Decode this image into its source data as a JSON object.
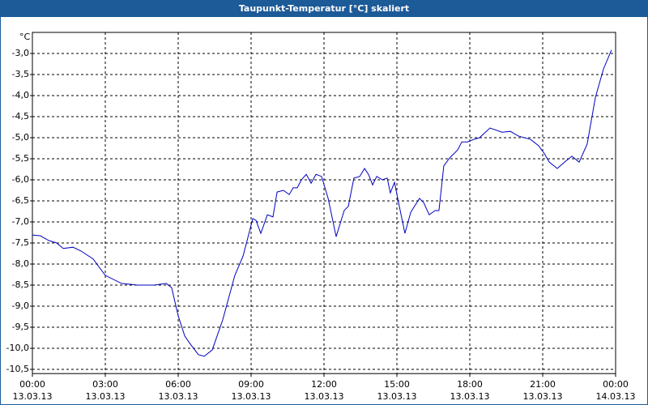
{
  "chart_data": {
    "type": "line",
    "title": "Taupunkt-Temperatur [°C] skaliert",
    "y_unit": "°C",
    "color": "#0000c0",
    "grid": true,
    "xlim": [
      0,
      24
    ],
    "ylim": [
      -10.6,
      -2.5
    ],
    "xticks": [
      {
        "value": 0,
        "label": "00:00"
      },
      {
        "value": 3,
        "label": "03:00"
      },
      {
        "value": 6,
        "label": "06:00"
      },
      {
        "value": 9,
        "label": "09:00"
      },
      {
        "value": 12,
        "label": "12:00"
      },
      {
        "value": 15,
        "label": "15:00"
      },
      {
        "value": 18,
        "label": "18:00"
      },
      {
        "value": 21,
        "label": "21:00"
      },
      {
        "value": 24,
        "label": "00:00"
      }
    ],
    "xtick_dates": [
      "13.03.13",
      "13.03.13",
      "13.03.13",
      "13.03.13",
      "13.03.13",
      "13.03.13",
      "13.03.13",
      "13.03.13",
      "14.03.13"
    ],
    "yticks": [
      {
        "value": -3.0,
        "label": "-3,0"
      },
      {
        "value": -3.5,
        "label": "-3,5"
      },
      {
        "value": -4.0,
        "label": "-4,0"
      },
      {
        "value": -4.5,
        "label": "-4,5"
      },
      {
        "value": -5.0,
        "label": "-5,0"
      },
      {
        "value": -5.5,
        "label": "-5,5"
      },
      {
        "value": -6.0,
        "label": "-6,0"
      },
      {
        "value": -6.5,
        "label": "-6,5"
      },
      {
        "value": -7.0,
        "label": "-7,0"
      },
      {
        "value": -7.5,
        "label": "-7,5"
      },
      {
        "value": -8.0,
        "label": "-8,0"
      },
      {
        "value": -8.5,
        "label": "-8,5"
      },
      {
        "value": -9.0,
        "label": "-9,0"
      },
      {
        "value": -9.5,
        "label": "-9,5"
      },
      {
        "value": -10.0,
        "label": "-10,0"
      },
      {
        "value": -10.5,
        "label": "-10,5"
      }
    ],
    "x": [
      0,
      0.33,
      0.67,
      1.0,
      1.27,
      1.67,
      2.0,
      2.5,
      3.0,
      3.67,
      4.33,
      5.0,
      5.5,
      5.73,
      6.0,
      6.27,
      6.5,
      6.83,
      7.07,
      7.4,
      7.83,
      8.33,
      8.67,
      9.07,
      9.2,
      9.4,
      9.67,
      9.9,
      10.07,
      10.33,
      10.57,
      10.73,
      10.9,
      11.07,
      11.27,
      11.47,
      11.67,
      11.9,
      12.17,
      12.5,
      12.83,
      13.0,
      13.23,
      13.47,
      13.67,
      13.83,
      14.0,
      14.17,
      14.4,
      14.6,
      14.73,
      14.9,
      15.1,
      15.33,
      15.57,
      15.93,
      16.1,
      16.33,
      16.57,
      16.73,
      16.93,
      17.17,
      17.5,
      17.67,
      17.9,
      18.17,
      18.4,
      18.83,
      19.33,
      19.67,
      20.0,
      20.5,
      20.83,
      21.07,
      21.27,
      21.6,
      21.9,
      22.2,
      22.5,
      22.83,
      23.17,
      23.5,
      23.83
    ],
    "values": [
      -7.31,
      -7.33,
      -7.44,
      -7.5,
      -7.63,
      -7.6,
      -7.69,
      -7.88,
      -8.27,
      -8.46,
      -8.5,
      -8.5,
      -8.46,
      -8.56,
      -9.23,
      -9.71,
      -9.9,
      -10.15,
      -10.19,
      -10.04,
      -9.33,
      -8.27,
      -7.81,
      -6.92,
      -6.96,
      -7.27,
      -6.83,
      -6.88,
      -6.29,
      -6.25,
      -6.35,
      -6.19,
      -6.19,
      -6.0,
      -5.87,
      -6.08,
      -5.87,
      -5.92,
      -6.44,
      -7.35,
      -6.73,
      -6.63,
      -5.96,
      -5.92,
      -5.73,
      -5.87,
      -6.12,
      -5.92,
      -6.0,
      -5.96,
      -6.31,
      -6.06,
      -6.63,
      -7.27,
      -6.77,
      -6.44,
      -6.54,
      -6.83,
      -6.73,
      -6.73,
      -5.67,
      -5.48,
      -5.29,
      -5.1,
      -5.1,
      -5.04,
      -5.0,
      -4.77,
      -4.87,
      -4.85,
      -4.96,
      -5.04,
      -5.19,
      -5.38,
      -5.58,
      -5.73,
      -5.58,
      -5.44,
      -5.58,
      -5.15,
      -4.04,
      -3.37,
      -2.92
    ]
  }
}
